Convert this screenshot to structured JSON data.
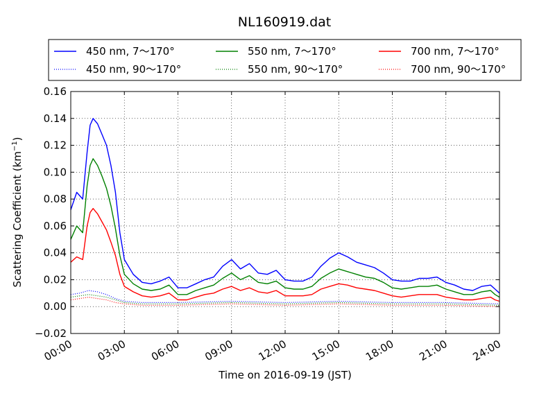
{
  "chart_data": {
    "type": "line",
    "title": "NL160919.dat",
    "xlabel": "Time on 2016-09-19 (JST)",
    "ylabel_main": "Scattering Coefficient (km",
    "ylabel_sup": "−1",
    "ylabel_close": ")",
    "xlim_hours": [
      0,
      24
    ],
    "ylim": [
      -0.02,
      0.16
    ],
    "x_ticks": [
      {
        "h": 0,
        "label": "00:00"
      },
      {
        "h": 3,
        "label": "03:00"
      },
      {
        "h": 6,
        "label": "06:00"
      },
      {
        "h": 9,
        "label": "09:00"
      },
      {
        "h": 12,
        "label": "12:00"
      },
      {
        "h": 15,
        "label": "15:00"
      },
      {
        "h": 18,
        "label": "18:00"
      },
      {
        "h": 21,
        "label": "21:00"
      },
      {
        "h": 24,
        "label": "24:00"
      }
    ],
    "y_ticks": [
      {
        "v": -0.02,
        "label": "−0.02"
      },
      {
        "v": 0.0,
        "label": "0.00"
      },
      {
        "v": 0.02,
        "label": "0.02"
      },
      {
        "v": 0.04,
        "label": "0.04"
      },
      {
        "v": 0.06,
        "label": "0.06"
      },
      {
        "v": 0.08,
        "label": "0.08"
      },
      {
        "v": 0.1,
        "label": "0.10"
      },
      {
        "v": 0.12,
        "label": "0.12"
      },
      {
        "v": 0.14,
        "label": "0.14"
      },
      {
        "v": 0.16,
        "label": "0.16"
      }
    ],
    "grid": true,
    "legend_position": "top",
    "series": [
      {
        "name": "450 nm, 7～170°",
        "color": "#0000ff",
        "style": "solid",
        "x": [
          "00:00",
          "00:20",
          "00:40",
          "00:55",
          "01:05",
          "01:15",
          "01:30",
          "01:45",
          "02:00",
          "02:15",
          "02:30",
          "02:45",
          "03:00",
          "03:30",
          "04:00",
          "04:30",
          "05:00",
          "05:30",
          "06:00",
          "06:30",
          "07:00",
          "07:30",
          "08:00",
          "08:30",
          "09:00",
          "09:30",
          "10:00",
          "10:30",
          "11:00",
          "11:30",
          "12:00",
          "12:30",
          "13:00",
          "13:30",
          "14:00",
          "14:30",
          "15:00",
          "15:30",
          "16:00",
          "16:30",
          "17:00",
          "17:30",
          "18:00",
          "18:30",
          "19:00",
          "19:30",
          "20:00",
          "20:30",
          "21:00",
          "21:30",
          "22:00",
          "22:30",
          "23:00",
          "23:30",
          "23:45",
          "24:00"
        ],
        "values": [
          0.072,
          0.085,
          0.08,
          0.115,
          0.135,
          0.14,
          0.136,
          0.128,
          0.12,
          0.105,
          0.085,
          0.055,
          0.035,
          0.024,
          0.018,
          0.017,
          0.019,
          0.022,
          0.014,
          0.014,
          0.017,
          0.02,
          0.022,
          0.03,
          0.035,
          0.028,
          0.032,
          0.025,
          0.024,
          0.027,
          0.02,
          0.019,
          0.019,
          0.022,
          0.03,
          0.036,
          0.04,
          0.037,
          0.033,
          0.031,
          0.029,
          0.025,
          0.02,
          0.019,
          0.019,
          0.021,
          0.021,
          0.022,
          0.018,
          0.016,
          0.013,
          0.012,
          0.015,
          0.016,
          0.013,
          0.01
        ]
      },
      {
        "name": "550 nm, 7～170°",
        "color": "#008000",
        "style": "solid",
        "x": [
          "00:00",
          "00:20",
          "00:40",
          "00:55",
          "01:05",
          "01:15",
          "01:30",
          "01:45",
          "02:00",
          "02:15",
          "02:30",
          "02:45",
          "03:00",
          "03:30",
          "04:00",
          "04:30",
          "05:00",
          "05:30",
          "06:00",
          "06:30",
          "07:00",
          "07:30",
          "08:00",
          "08:30",
          "09:00",
          "09:30",
          "10:00",
          "10:30",
          "11:00",
          "11:30",
          "12:00",
          "12:30",
          "13:00",
          "13:30",
          "14:00",
          "14:30",
          "15:00",
          "15:30",
          "16:00",
          "16:30",
          "17:00",
          "17:30",
          "18:00",
          "18:30",
          "19:00",
          "19:30",
          "20:00",
          "20:30",
          "21:00",
          "21:30",
          "22:00",
          "22:30",
          "23:00",
          "23:30",
          "23:45",
          "24:00"
        ],
        "values": [
          0.05,
          0.06,
          0.055,
          0.09,
          0.105,
          0.11,
          0.105,
          0.097,
          0.088,
          0.075,
          0.058,
          0.038,
          0.024,
          0.017,
          0.013,
          0.012,
          0.013,
          0.016,
          0.009,
          0.009,
          0.012,
          0.014,
          0.016,
          0.021,
          0.025,
          0.02,
          0.023,
          0.018,
          0.017,
          0.019,
          0.014,
          0.013,
          0.013,
          0.015,
          0.021,
          0.025,
          0.028,
          0.026,
          0.024,
          0.022,
          0.021,
          0.018,
          0.014,
          0.013,
          0.014,
          0.015,
          0.015,
          0.016,
          0.013,
          0.011,
          0.009,
          0.009,
          0.011,
          0.012,
          0.009,
          0.007
        ]
      },
      {
        "name": "700 nm, 7～170°",
        "color": "#ff0000",
        "style": "solid",
        "x": [
          "00:00",
          "00:20",
          "00:40",
          "00:55",
          "01:05",
          "01:15",
          "01:30",
          "01:45",
          "02:00",
          "02:15",
          "02:30",
          "02:45",
          "03:00",
          "03:30",
          "04:00",
          "04:30",
          "05:00",
          "05:30",
          "06:00",
          "06:30",
          "07:00",
          "07:30",
          "08:00",
          "08:30",
          "09:00",
          "09:30",
          "10:00",
          "10:30",
          "11:00",
          "11:30",
          "12:00",
          "12:30",
          "13:00",
          "13:30",
          "14:00",
          "14:30",
          "15:00",
          "15:30",
          "16:00",
          "16:30",
          "17:00",
          "17:30",
          "18:00",
          "18:30",
          "19:00",
          "19:30",
          "20:00",
          "20:30",
          "21:00",
          "21:30",
          "22:00",
          "22:30",
          "23:00",
          "23:30",
          "23:45",
          "24:00"
        ],
        "values": [
          0.033,
          0.037,
          0.035,
          0.06,
          0.07,
          0.073,
          0.069,
          0.063,
          0.057,
          0.048,
          0.038,
          0.024,
          0.015,
          0.011,
          0.008,
          0.007,
          0.008,
          0.01,
          0.005,
          0.005,
          0.007,
          0.009,
          0.01,
          0.013,
          0.015,
          0.012,
          0.014,
          0.011,
          0.01,
          0.012,
          0.008,
          0.008,
          0.008,
          0.009,
          0.013,
          0.015,
          0.017,
          0.016,
          0.014,
          0.013,
          0.012,
          0.01,
          0.008,
          0.007,
          0.008,
          0.009,
          0.009,
          0.009,
          0.007,
          0.006,
          0.005,
          0.005,
          0.006,
          0.007,
          0.005,
          0.004
        ]
      },
      {
        "name": "450 nm, 90～170°",
        "color": "#0000ff",
        "style": "dotted",
        "x": [
          "00:00",
          "00:30",
          "01:00",
          "01:30",
          "02:00",
          "02:30",
          "03:00",
          "04:00",
          "06:00",
          "09:00",
          "12:00",
          "15:00",
          "18:00",
          "21:00",
          "24:00"
        ],
        "values": [
          0.009,
          0.01,
          0.012,
          0.011,
          0.009,
          0.006,
          0.004,
          0.003,
          0.003,
          0.004,
          0.003,
          0.004,
          0.003,
          0.003,
          0.002
        ]
      },
      {
        "name": "550 nm, 90～170°",
        "color": "#008000",
        "style": "dotted",
        "x": [
          "00:00",
          "00:30",
          "01:00",
          "01:30",
          "02:00",
          "02:30",
          "03:00",
          "04:00",
          "06:00",
          "09:00",
          "12:00",
          "15:00",
          "18:00",
          "21:00",
          "24:00"
        ],
        "values": [
          0.007,
          0.008,
          0.009,
          0.008,
          0.007,
          0.005,
          0.003,
          0.002,
          0.002,
          0.003,
          0.002,
          0.003,
          0.002,
          0.002,
          0.001
        ]
      },
      {
        "name": "700 nm, 90～170°",
        "color": "#ff0000",
        "style": "dotted",
        "x": [
          "00:00",
          "00:30",
          "01:00",
          "01:30",
          "02:00",
          "02:30",
          "03:00",
          "04:00",
          "06:00",
          "09:00",
          "12:00",
          "15:00",
          "18:00",
          "21:00",
          "24:00"
        ],
        "values": [
          0.005,
          0.006,
          0.007,
          0.006,
          0.005,
          0.003,
          0.002,
          0.001,
          0.001,
          0.002,
          0.001,
          0.002,
          0.001,
          0.001,
          0.0
        ]
      }
    ]
  }
}
